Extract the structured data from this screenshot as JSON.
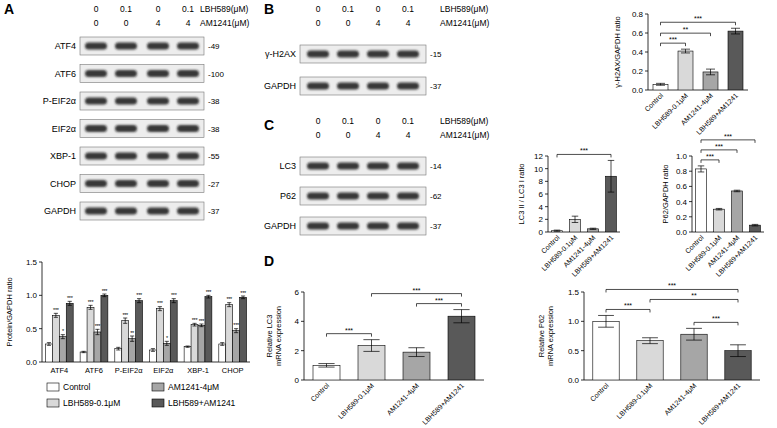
{
  "panel_letters": [
    "A",
    "B",
    "C",
    "D"
  ],
  "blots": [
    {
      "headers": [
        {
          "label": "LBH589(μM)",
          "values": [
            0,
            0.1,
            0,
            0.1
          ]
        },
        {
          "label": "AM1241(μM)",
          "values": [
            0,
            0,
            4,
            4
          ]
        }
      ],
      "rows": [
        {
          "name": "ATF4",
          "mw": "-49"
        },
        {
          "name": "ATF6",
          "mw": "-100"
        },
        {
          "name": "P-EIF2α",
          "mw": "-38"
        },
        {
          "name": "EIF2α",
          "mw": "-38"
        },
        {
          "name": "XBP-1",
          "mw": "-55"
        },
        {
          "name": "CHOP",
          "mw": "-27"
        },
        {
          "name": "GAPDH",
          "mw": "-37"
        }
      ]
    },
    {
      "headers": [
        {
          "label": "LBH589(μM)",
          "values": [
            0,
            0.1,
            0,
            0.1
          ]
        },
        {
          "label": "AM1241(μM)",
          "values": [
            0,
            0,
            4,
            4
          ]
        }
      ],
      "rows": [
        {
          "name": "γ-H2AX",
          "mw": "-15"
        },
        {
          "name": "GAPDH",
          "mw": "-37"
        }
      ]
    },
    {
      "headers": [
        {
          "label": "LBH589(μM)",
          "values": [
            0,
            0.1,
            0,
            0.1
          ]
        },
        {
          "label": "AM1241(μM)",
          "values": [
            0,
            0,
            4,
            4
          ]
        }
      ],
      "rows": [
        {
          "name": "LC3",
          "mw": "-14"
        },
        {
          "name": "P62",
          "mw": "-62"
        },
        {
          "name": "GAPDH",
          "mw": "-37"
        }
      ]
    }
  ],
  "chart_data": [
    {
      "type": "bar",
      "y_label": "Protein/GAPDH ratio",
      "categories": [
        "ATF4",
        "ATF6",
        "P-EIF2α",
        "EIF2α",
        "XBP-1",
        "CHOP"
      ],
      "ylim": [
        0,
        1.5
      ],
      "yticks": [
        {
          "value": 0,
          "label": "0.0"
        },
        {
          "value": 0.5,
          "label": "0.5"
        },
        {
          "value": 1,
          "label": "1.0"
        },
        {
          "value": 1.5,
          "label": "1.5"
        }
      ],
      "legend": "bottom",
      "series": [
        {
          "name": "Control",
          "color": "#ffffff",
          "values": [
            0.27,
            0.15,
            0.2,
            0.18,
            0.23,
            0.27
          ],
          "errors": [
            0.02,
            0.01,
            0.02,
            0.02,
            0.01,
            0.02
          ]
        },
        {
          "name": "LBH589-0.1μM",
          "color": "#d9d9d9",
          "values": [
            0.7,
            0.82,
            0.62,
            0.8,
            0.56,
            0.86
          ],
          "errors": [
            0.03,
            0.03,
            0.04,
            0.03,
            0.02,
            0.03
          ],
          "annotations": [
            "***",
            "***",
            "***",
            "***",
            "***",
            "***"
          ]
        },
        {
          "name": "AM1241-4μM",
          "color": "#a6a6a6",
          "values": [
            0.38,
            0.45,
            0.35,
            0.28,
            0.55,
            0.47
          ],
          "errors": [
            0.03,
            0.04,
            0.04,
            0.03,
            0.02,
            0.03
          ],
          "annotations": [
            "*",
            "***",
            "**",
            "*",
            "***",
            "***"
          ]
        },
        {
          "name": "LBH589+AM1241",
          "color": "#595959",
          "values": [
            0.88,
            1.0,
            0.92,
            0.92,
            0.98,
            0.97
          ],
          "errors": [
            0.03,
            0.02,
            0.03,
            0.03,
            0.02,
            0.02
          ],
          "annotations": [
            "***",
            "***",
            "***",
            "***",
            "***",
            "***"
          ]
        }
      ]
    },
    {
      "type": "bar",
      "y_label": "γ-H2AX/GAPDH ratio",
      "categories": [
        "Control",
        "LBH589-0.1μM",
        "AM1241-4μM",
        "LBH589+AM1241"
      ],
      "values": [
        0.06,
        0.41,
        0.19,
        0.62
      ],
      "errors": [
        0.01,
        0.02,
        0.03,
        0.03
      ],
      "colors": [
        "#ffffff",
        "#d9d9d9",
        "#a6a6a6",
        "#595959"
      ],
      "ylim": [
        0,
        0.8
      ],
      "yticks": [
        {
          "value": 0,
          "label": "0.0"
        },
        {
          "value": 0.2,
          "label": "0.2"
        },
        {
          "value": 0.4,
          "label": "0.4"
        },
        {
          "value": 0.6,
          "label": "0.6"
        },
        {
          "value": 0.8,
          "label": "0.8"
        }
      ],
      "comparisons": [
        {
          "groups": [
            "Control",
            "LBH589-0.1μM"
          ],
          "label": "***"
        },
        {
          "groups": [
            "Control",
            "AM1241-4μM"
          ],
          "label": "**"
        },
        {
          "groups": [
            "Control",
            "LBH589+AM1241"
          ],
          "label": "***"
        }
      ]
    },
    {
      "type": "bar",
      "y_label": "LC3 II / LC3 I ratio",
      "categories": [
        "Control",
        "LBH589-0.1μM",
        "AM1241-4μM",
        "LBH589+AM1241"
      ],
      "values": [
        0.2,
        2.0,
        0.5,
        8.8
      ],
      "errors": [
        0.1,
        0.5,
        0.1,
        2.5
      ],
      "colors": [
        "#ffffff",
        "#d9d9d9",
        "#a6a6a6",
        "#595959"
      ],
      "ylim": [
        0,
        12
      ],
      "yticks": [
        0,
        2,
        4,
        6,
        8,
        10,
        12
      ],
      "comparisons": [
        {
          "groups": [
            "Control",
            "LBH589+AM1241"
          ],
          "label": "***"
        }
      ]
    },
    {
      "type": "bar",
      "y_label": "P62/GAPDH ratio",
      "categories": [
        "Control",
        "LBH589-0.1μM",
        "AM1241-4μM",
        "LBH589+AM1241"
      ],
      "values": [
        0.83,
        0.3,
        0.54,
        0.09
      ],
      "errors": [
        0.04,
        0.01,
        0.01,
        0.01
      ],
      "colors": [
        "#ffffff",
        "#d9d9d9",
        "#a6a6a6",
        "#595959"
      ],
      "ylim": [
        0,
        1
      ],
      "yticks": [
        {
          "value": 0,
          "label": "0.0"
        },
        {
          "value": 0.2,
          "label": "0.2"
        },
        {
          "value": 0.4,
          "label": "0.4"
        },
        {
          "value": 0.6,
          "label": "0.6"
        },
        {
          "value": 0.8,
          "label": "0.8"
        },
        {
          "value": 1,
          "label": "1.0"
        }
      ],
      "comparisons": [
        {
          "groups": [
            "Control",
            "LBH589-0.1μM"
          ],
          "label": "***"
        },
        {
          "groups": [
            "Control",
            "AM1241-4μM"
          ],
          "label": "***"
        },
        {
          "groups": [
            "Control",
            "LBH589+AM1241"
          ],
          "label": "***"
        }
      ]
    },
    {
      "type": "bar",
      "y_label": "Relative LC3 mRNA expression",
      "categories": [
        "Control",
        "LBH589-0.1μM",
        "AM1241-4μM",
        "LBH589+AM1241"
      ],
      "values": [
        1.0,
        2.35,
        1.9,
        4.35
      ],
      "errors": [
        0.12,
        0.4,
        0.3,
        0.45
      ],
      "colors": [
        "#ffffff",
        "#d9d9d9",
        "#a6a6a6",
        "#595959"
      ],
      "ylim": [
        0,
        6
      ],
      "yticks": [
        0,
        2,
        4,
        6
      ],
      "comparisons": [
        {
          "groups": [
            "Control",
            "LBH589-0.1μM"
          ],
          "label": "***"
        },
        {
          "groups": [
            "AM1241-4μM",
            "LBH589+AM1241"
          ],
          "label": "***"
        },
        {
          "groups": [
            "LBH589-0.1μM",
            "LBH589+AM1241"
          ],
          "label": "***"
        }
      ]
    },
    {
      "type": "bar",
      "y_label": "Relative P62 mRNA expression",
      "categories": [
        "Control",
        "LBH589-0.1μM",
        "AM1241-4μM",
        "LBH589+AM1241"
      ],
      "values": [
        1.0,
        0.67,
        0.78,
        0.5
      ],
      "errors": [
        0.1,
        0.05,
        0.1,
        0.1
      ],
      "colors": [
        "#ffffff",
        "#d9d9d9",
        "#a6a6a6",
        "#595959"
      ],
      "ylim": [
        0,
        1.5
      ],
      "yticks": [
        {
          "value": 0,
          "label": "0.0"
        },
        {
          "value": 0.5,
          "label": "0.5"
        },
        {
          "value": 1,
          "label": "1.0"
        },
        {
          "value": 1.5,
          "label": "1.5"
        }
      ],
      "comparisons": [
        {
          "groups": [
            "Control",
            "LBH589-0.1μM"
          ],
          "label": "***"
        },
        {
          "groups": [
            "AM1241-4μM",
            "LBH589+AM1241"
          ],
          "label": "***"
        },
        {
          "groups": [
            "LBH589-0.1μM",
            "LBH589+AM1241"
          ],
          "label": "**"
        },
        {
          "groups": [
            "Control",
            "LBH589+AM1241"
          ],
          "label": "***"
        }
      ]
    }
  ]
}
